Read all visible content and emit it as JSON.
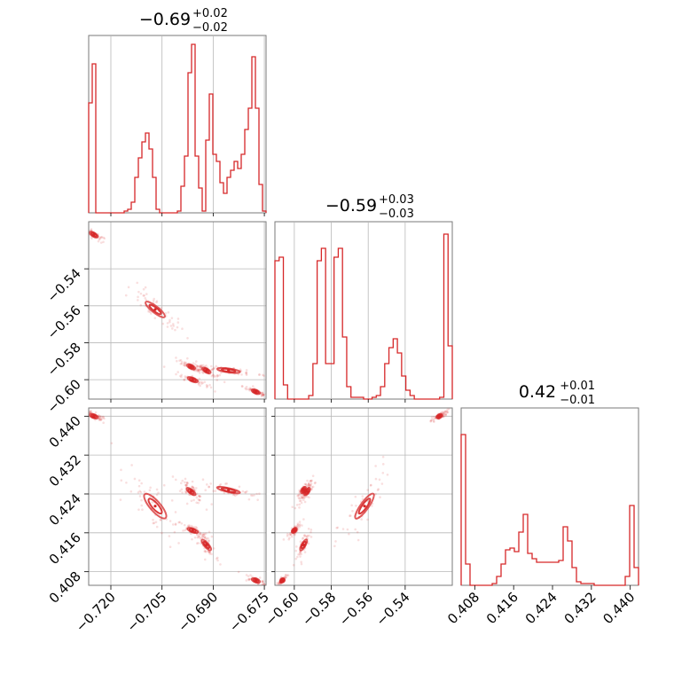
{
  "chart_data": {
    "type": "corner",
    "color": "#d62728",
    "params": [
      {
        "range": [
          -0.7265,
          -0.6745
        ],
        "ticks": [
          "−0.720",
          "−0.705",
          "−0.690",
          "−0.675"
        ],
        "tick_values": [
          -0.72,
          -0.705,
          -0.69,
          -0.675
        ],
        "title": {
          "value": "−0.69",
          "plus": "+0.02",
          "minus": "−0.02"
        },
        "hist": [
          0.62,
          0.84,
          0,
          0,
          0,
          0,
          0,
          0,
          0,
          0,
          0.01,
          0.02,
          0.06,
          0.2,
          0.31,
          0.4,
          0.45,
          0.36,
          0.2,
          0.02,
          0,
          0,
          0,
          0,
          0,
          0.01,
          0.15,
          0.32,
          0.79,
          0.95,
          0.32,
          0.14,
          0.01,
          0.41,
          0.67,
          0.33,
          0.29,
          0.17,
          0.11,
          0.2,
          0.24,
          0.29,
          0.25,
          0.33,
          0.47,
          0.59,
          0.88,
          0.59,
          0.16,
          0.01
        ]
      },
      {
        "range": [
          -0.6105,
          -0.5145
        ],
        "ticks": [
          "−0.60",
          "−0.58",
          "−0.56",
          "−0.54"
        ],
        "tick_values": [
          -0.6,
          -0.58,
          -0.56,
          -0.54
        ],
        "title": {
          "value": "−0.59",
          "plus": "+0.03",
          "minus": "−0.03"
        },
        "hist": [
          0.78,
          0.8,
          0.08,
          0,
          0,
          0,
          0,
          0,
          0.02,
          0.2,
          0.78,
          0.85,
          0.2,
          0.2,
          0.8,
          0.85,
          0.35,
          0.07,
          0.01,
          0.01,
          0.01,
          0,
          0,
          0.01,
          0.02,
          0.07,
          0.2,
          0.29,
          0.34,
          0.26,
          0.13,
          0.05,
          0.02,
          0,
          0,
          0,
          0,
          0,
          0,
          0.01,
          0.93,
          0.3
        ],
        "ylabels": [
          "−0.54",
          "−0.56",
          "−0.58",
          "−0.60"
        ],
        "ytick_values": [
          -0.54,
          -0.56,
          -0.58,
          -0.6
        ]
      },
      {
        "range": [
          0.4052,
          0.4417
        ],
        "ticks": [
          "0.408",
          "0.416",
          "0.424",
          "0.432",
          "0.440"
        ],
        "tick_values": [
          0.408,
          0.416,
          0.424,
          0.432,
          0.44
        ],
        "title": {
          "value": "0.42",
          "plus": "+0.01",
          "minus": "−0.01"
        },
        "hist": [
          0.85,
          0.12,
          0,
          0,
          0,
          0,
          0,
          0.01,
          0.05,
          0.12,
          0.2,
          0.21,
          0.19,
          0.3,
          0.4,
          0.18,
          0.15,
          0.13,
          0.13,
          0.13,
          0.13,
          0.13,
          0.14,
          0.33,
          0.25,
          0.1,
          0.02,
          0.01,
          0.01,
          0.01,
          0,
          0,
          0,
          0,
          0,
          0,
          0,
          0.05,
          0.45,
          0.1
        ],
        "ylabels": [
          "0.440",
          "0.432",
          "0.424",
          "0.416",
          "0.408"
        ],
        "ytick_values": [
          0.44,
          0.432,
          0.424,
          0.416,
          0.408
        ]
      }
    ],
    "clusters": [
      {
        "p": [
          -0.725,
          -0.5215,
          0.44
        ],
        "r": [
          0.0012,
          0.0015,
          0.0004
        ]
      },
      {
        "p": [
          -0.707,
          -0.562,
          0.4215
        ],
        "r": [
          0.0028,
          0.0045,
          0.0028
        ]
      },
      {
        "p": [
          -0.6965,
          -0.593,
          0.4245
        ],
        "r": [
          0.0012,
          0.0012,
          0.0008
        ]
      },
      {
        "p": [
          -0.696,
          -0.6,
          0.4165
        ],
        "r": [
          0.0015,
          0.0012,
          0.0005
        ]
      },
      {
        "p": [
          -0.692,
          -0.595,
          0.4135
        ],
        "r": [
          0.0012,
          0.0015,
          0.0012
        ]
      },
      {
        "p": [
          -0.6855,
          -0.595,
          0.4248
        ],
        "r": [
          0.0035,
          0.001,
          0.0007
        ]
      },
      {
        "p": [
          -0.6775,
          -0.6065,
          0.4062
        ],
        "r": [
          0.0012,
          0.001,
          0.0004
        ]
      }
    ]
  }
}
